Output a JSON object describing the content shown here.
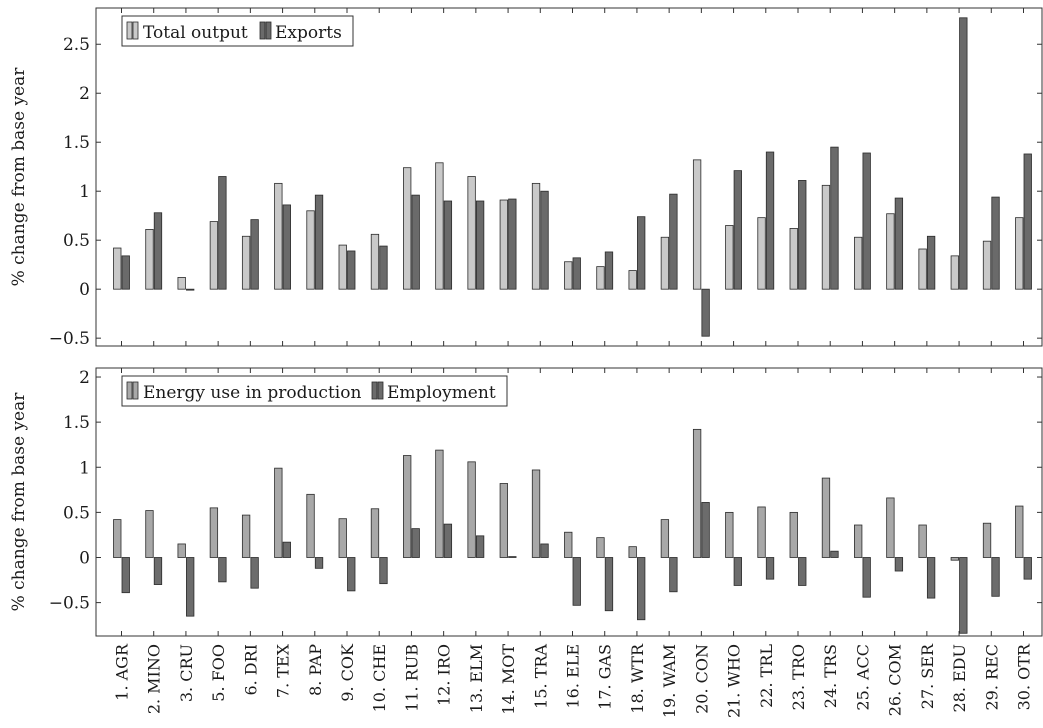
{
  "colors": {
    "light_bar": "#c9c9c9",
    "dark_bar": "#777777",
    "top_dark_bar": "#6a6a6a",
    "bottom_light_bar": "#a8a8a8",
    "bottom_dark_bar": "#6c6c6c"
  },
  "chart_data": [
    {
      "type": "bar",
      "ylabel": "% change from base year",
      "ylim": [
        -0.58,
        2.87
      ],
      "yticks": [
        -0.5,
        0,
        0.5,
        1,
        1.5,
        2,
        2.5
      ],
      "ytick_labels": [
        "−0.5",
        "0",
        "0.5",
        "1",
        "1.5",
        "2",
        "2.5"
      ],
      "legend_position": "top-left",
      "categories": [
        "1. AGR",
        "2. MINO",
        "3. CRU",
        "5. FOO",
        "6. DRI",
        "7. TEX",
        "8. PAP",
        "9. COK",
        "10. CHE",
        "11. RUB",
        "12. IRO",
        "13. ELM",
        "14. MOT",
        "15. TRA",
        "16. ELE",
        "17. GAS",
        "18. WTR",
        "19. WAM",
        "20. CON",
        "21. WHO",
        "22. TRL",
        "23. TRO",
        "24. TRS",
        "25. ACC",
        "26. COM",
        "27. SER",
        "28. EDU",
        "29. REC",
        "30. OTR"
      ],
      "series": [
        {
          "name": "Total output",
          "values": [
            0.42,
            0.61,
            0.12,
            0.69,
            0.54,
            1.08,
            0.8,
            0.45,
            0.56,
            1.24,
            1.29,
            1.15,
            0.91,
            1.08,
            0.28,
            0.23,
            0.19,
            0.53,
            1.32,
            0.65,
            0.73,
            0.62,
            1.06,
            0.53,
            0.77,
            0.41,
            0.34,
            0.49,
            0.73
          ]
        },
        {
          "name": "Exports",
          "values": [
            0.34,
            0.78,
            -0.01,
            1.15,
            0.71,
            0.86,
            0.96,
            0.39,
            0.44,
            0.96,
            0.9,
            0.9,
            0.92,
            1.0,
            0.32,
            0.38,
            0.74,
            0.97,
            -0.48,
            1.21,
            1.4,
            1.11,
            1.45,
            1.39,
            0.93,
            0.54,
            2.77,
            0.94,
            1.38
          ]
        }
      ]
    },
    {
      "type": "bar",
      "ylabel": "% change from base year",
      "ylim": [
        -0.87,
        2.1
      ],
      "yticks": [
        -0.5,
        0,
        0.5,
        1,
        1.5,
        2
      ],
      "ytick_labels": [
        "−0.5",
        "0",
        "0.5",
        "1",
        "1.5",
        "2"
      ],
      "legend_position": "top-left",
      "categories": [
        "1. AGR",
        "2. MINO",
        "3. CRU",
        "5. FOO",
        "6. DRI",
        "7. TEX",
        "8. PAP",
        "9. COK",
        "10. CHE",
        "11. RUB",
        "12. IRO",
        "13. ELM",
        "14. MOT",
        "15. TRA",
        "16. ELE",
        "17. GAS",
        "18. WTR",
        "19. WAM",
        "20. CON",
        "21. WHO",
        "22. TRL",
        "23. TRO",
        "24. TRS",
        "25. ACC",
        "26. COM",
        "27. SER",
        "28. EDU",
        "29. REC",
        "30. OTR"
      ],
      "series": [
        {
          "name": "Energy use in production",
          "values": [
            0.42,
            0.52,
            0.15,
            0.55,
            0.47,
            0.99,
            0.7,
            0.43,
            0.54,
            1.13,
            1.19,
            1.06,
            0.82,
            0.97,
            0.28,
            0.22,
            0.12,
            0.42,
            1.42,
            0.5,
            0.56,
            0.5,
            0.88,
            0.36,
            0.66,
            0.36,
            -0.03,
            0.38,
            0.57
          ]
        },
        {
          "name": "Employment",
          "values": [
            -0.39,
            -0.3,
            -0.65,
            -0.27,
            -0.34,
            0.17,
            -0.12,
            -0.37,
            -0.29,
            0.32,
            0.37,
            0.24,
            0.01,
            0.15,
            -0.53,
            -0.59,
            -0.69,
            -0.38,
            0.61,
            -0.31,
            -0.24,
            -0.31,
            0.07,
            -0.44,
            -0.15,
            -0.45,
            -0.84,
            -0.43,
            -0.24
          ]
        }
      ]
    }
  ]
}
